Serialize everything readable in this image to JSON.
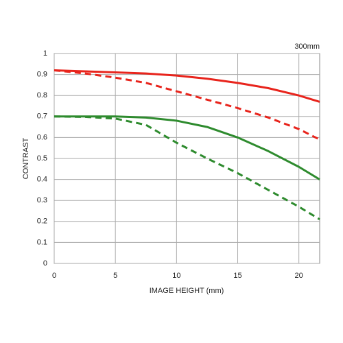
{
  "chart_data": {
    "type": "line",
    "annotation": "300mm",
    "x_label": "IMAGE HEIGHT (mm)",
    "y_label": "CONTRAST",
    "x": [
      0,
      2.5,
      5,
      7.5,
      10,
      12.5,
      15,
      17.5,
      20,
      21.7
    ],
    "series": [
      {
        "color": "#e8241c",
        "dashed": false,
        "values": [
          0.92,
          0.915,
          0.91,
          0.905,
          0.895,
          0.88,
          0.86,
          0.835,
          0.8,
          0.77
        ]
      },
      {
        "color": "#e8241c",
        "dashed": true,
        "values": [
          0.92,
          0.905,
          0.885,
          0.86,
          0.82,
          0.78,
          0.74,
          0.695,
          0.64,
          0.59
        ]
      },
      {
        "color": "#2e8b2e",
        "dashed": false,
        "values": [
          0.7,
          0.7,
          0.7,
          0.695,
          0.68,
          0.65,
          0.6,
          0.535,
          0.46,
          0.4
        ]
      },
      {
        "color": "#2e8b2e",
        "dashed": true,
        "values": [
          0.7,
          0.698,
          0.69,
          0.66,
          0.575,
          0.5,
          0.43,
          0.35,
          0.27,
          0.21
        ]
      }
    ],
    "xlim": [
      0,
      21.7
    ],
    "xticks": [
      0,
      5,
      10,
      15,
      20
    ],
    "ylim": [
      0,
      1
    ],
    "yticks": [
      0,
      0.1,
      0.2,
      0.3,
      0.4,
      0.5,
      0.6,
      0.7,
      0.8,
      0.9,
      1
    ],
    "grid": true
  }
}
